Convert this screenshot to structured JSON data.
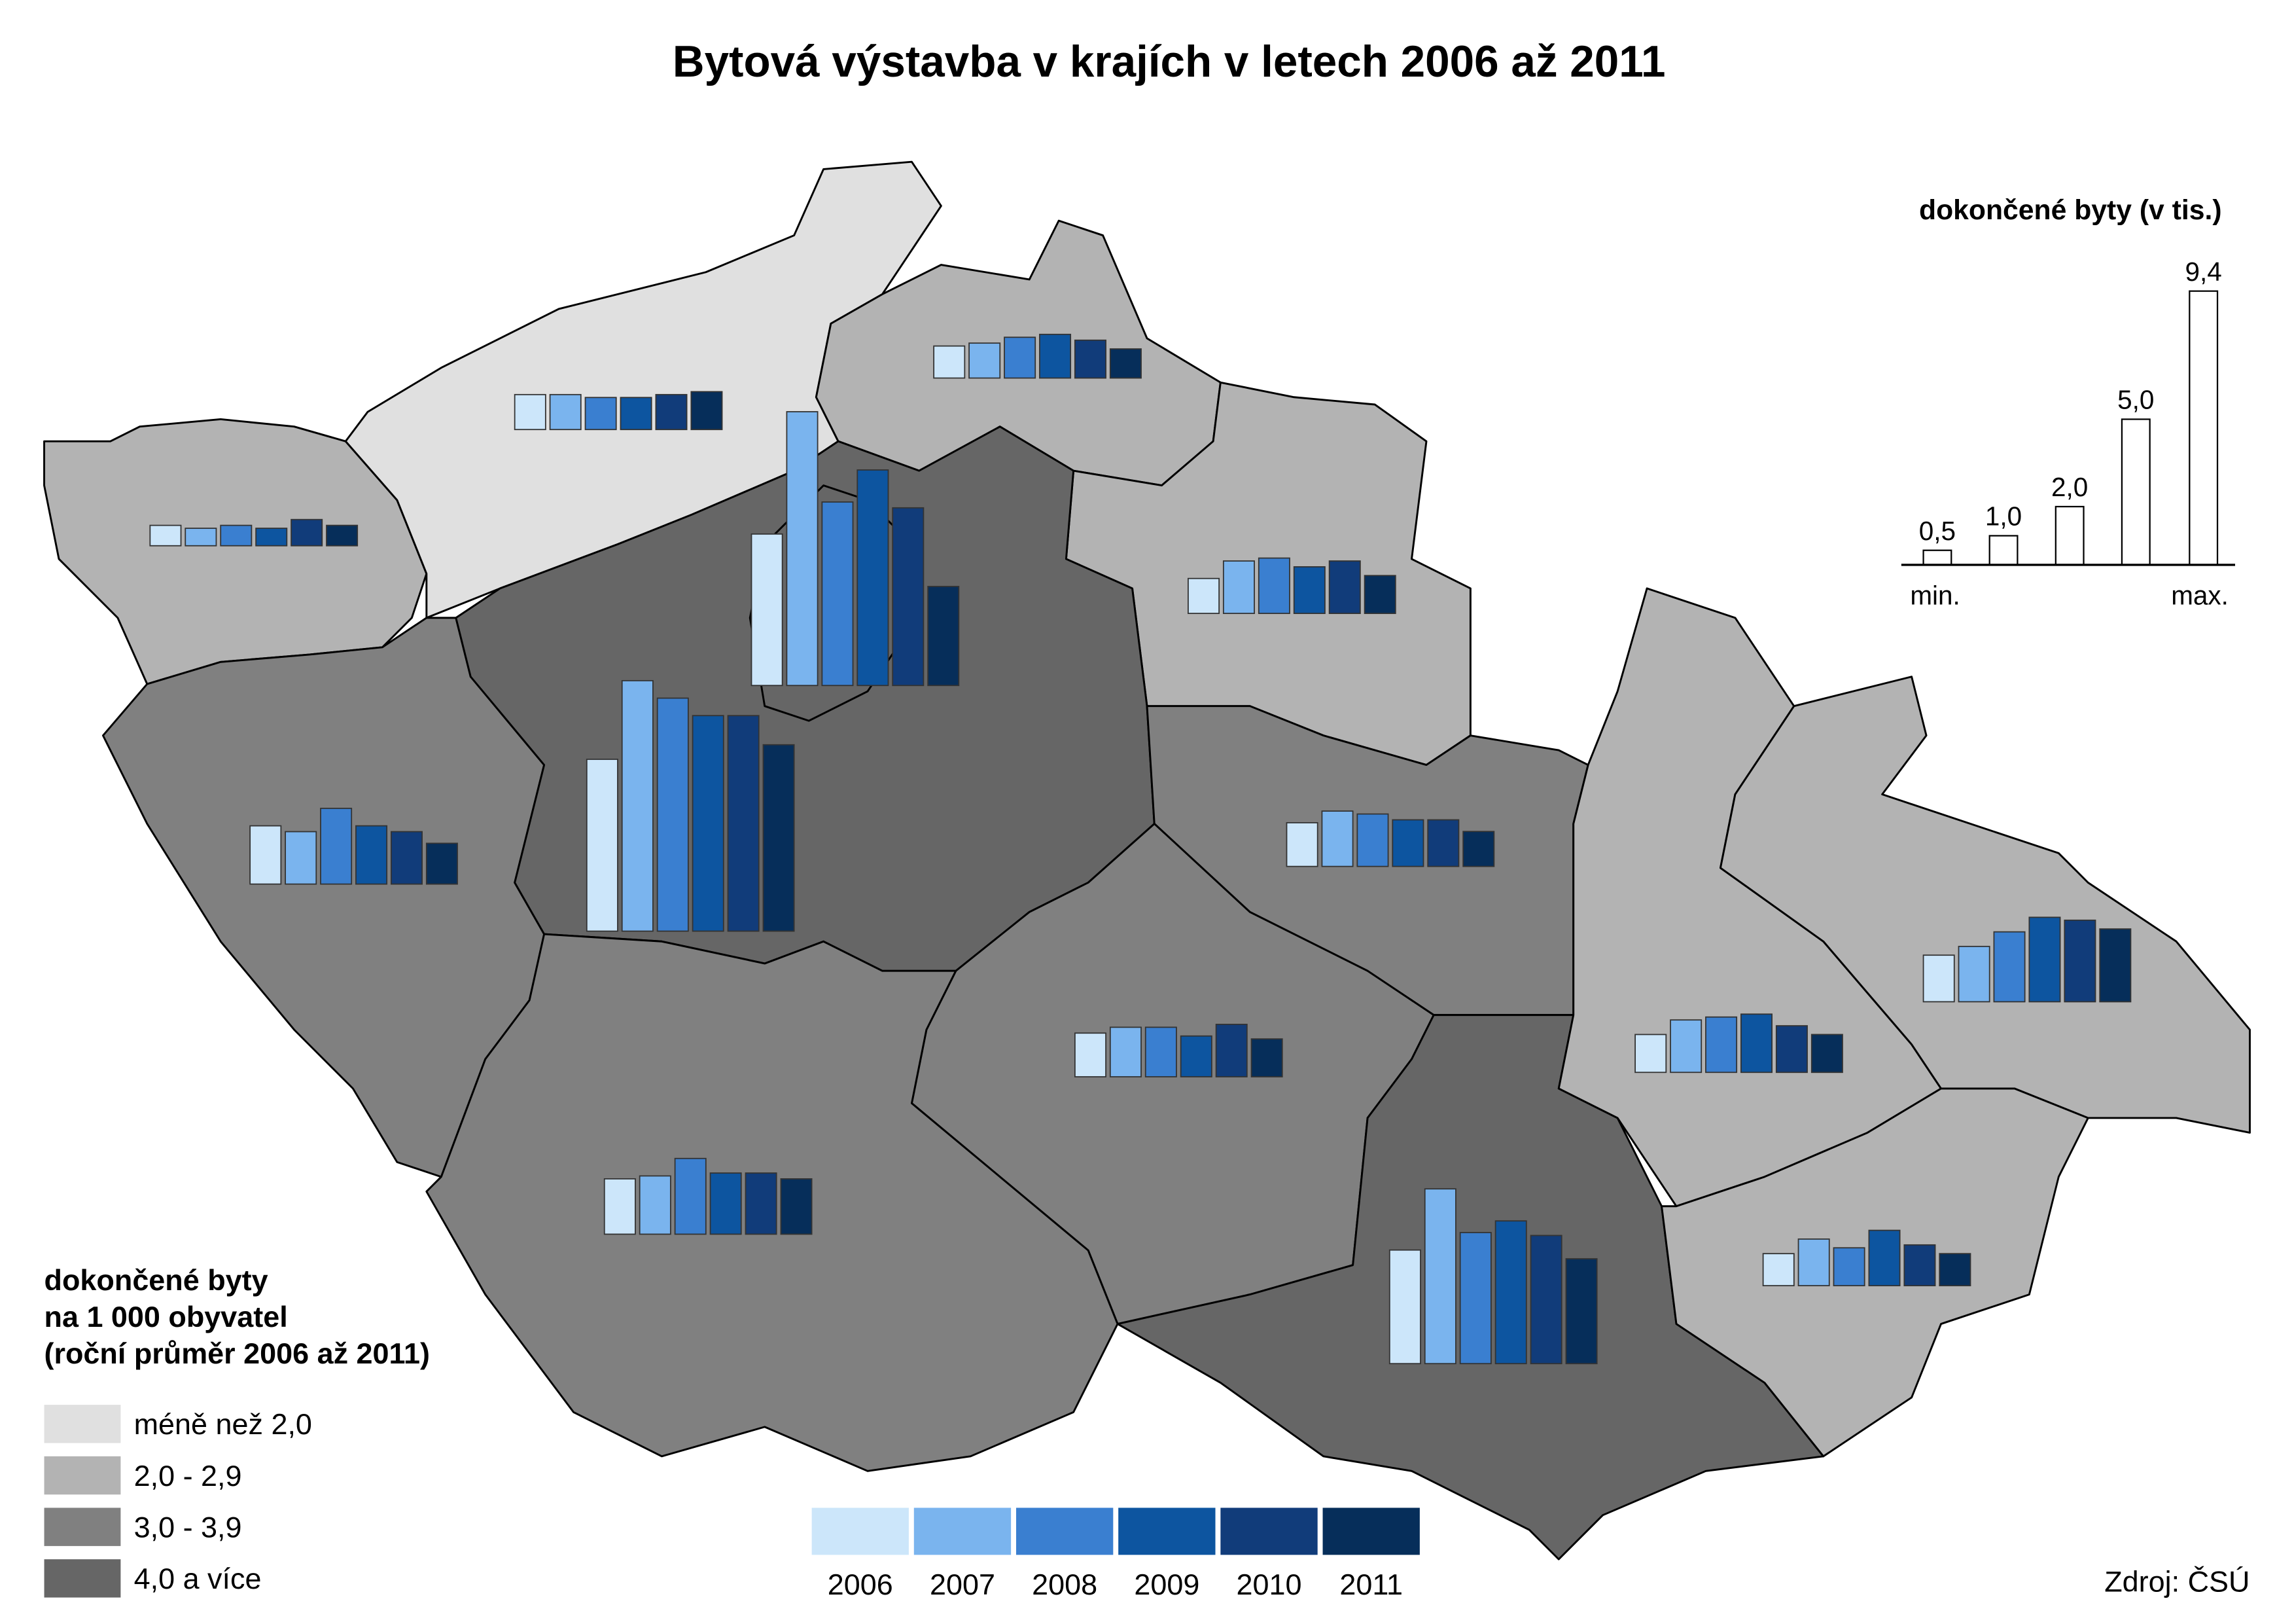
{
  "chart_data": {
    "type": "map-bar",
    "title": "Bytová výstavba v krajích v letech 2006 až 2011",
    "years": [
      "2006",
      "2007",
      "2008",
      "2009",
      "2010",
      "2011"
    ],
    "colors": [
      "#cce6fa",
      "#7ab4ee",
      "#3a7fd0",
      "#0d55a0",
      "#113c7a",
      "#062e5a"
    ],
    "regions": [
      {
        "color": "#b3b3b3",
        "values": [
          0.7,
          0.6,
          0.7,
          0.6,
          0.9,
          0.7
        ]
      },
      {
        "color": "#e0e0e0",
        "values": [
          1.2,
          1.2,
          1.1,
          1.1,
          1.2,
          1.3
        ]
      },
      {
        "color": "#b3b3b3",
        "values": [
          1.1,
          1.2,
          1.4,
          1.5,
          1.3,
          1.0
        ]
      },
      {
        "color": "#b3b3b3",
        "values": [
          1.2,
          1.8,
          1.9,
          1.6,
          1.8,
          1.3
        ]
      },
      {
        "color": "#808080",
        "values": [
          2.0,
          1.8,
          2.6,
          2.0,
          1.8,
          1.4
        ]
      },
      {
        "color": "#666666",
        "values": [
          5.9,
          8.6,
          8.0,
          7.4,
          7.4,
          6.4
        ]
      },
      {
        "color": "#666666",
        "values": [
          5.2,
          9.4,
          6.3,
          7.4,
          6.1,
          3.4
        ]
      },
      {
        "color": "#808080",
        "values": [
          1.5,
          1.9,
          1.8,
          1.6,
          1.6,
          1.2
        ]
      },
      {
        "color": "#808080",
        "values": [
          1.5,
          1.7,
          1.7,
          1.4,
          1.8,
          1.3
        ]
      },
      {
        "color": "#808080",
        "values": [
          1.9,
          2.0,
          2.6,
          2.1,
          2.1,
          1.9
        ]
      },
      {
        "color": "#666666",
        "values": [
          3.9,
          6.0,
          4.5,
          4.9,
          4.4,
          3.6
        ]
      },
      {
        "color": "#b3b3b3",
        "values": [
          1.3,
          1.8,
          1.9,
          2.0,
          1.6,
          1.3
        ]
      },
      {
        "color": "#b3b3b3",
        "values": [
          1.6,
          1.9,
          2.4,
          2.9,
          2.8,
          2.5
        ]
      },
      {
        "color": "#b3b3b3",
        "values": [
          1.1,
          1.6,
          1.3,
          1.9,
          1.4,
          1.1
        ]
      }
    ],
    "class_legend": {
      "title": [
        "dokončené byty",
        "na 1 000 obyvatel",
        "(roční průměr 2006 až 2011)"
      ],
      "items": [
        {
          "label": "méně než 2,0",
          "color": "#e0e0e0"
        },
        {
          "label": "2,0 - 2,9",
          "color": "#b3b3b3"
        },
        {
          "label": "3,0 - 3,9",
          "color": "#808080"
        },
        {
          "label": "4,0 a více",
          "color": "#666666"
        }
      ]
    },
    "size_legend": {
      "title": "dokončené byty (v tis.)",
      "values": [
        0.5,
        1.0,
        2.0,
        5.0,
        9.4
      ],
      "value_labels": [
        "0,5",
        "1,0",
        "2,0",
        "5,0",
        "9,4"
      ],
      "min_label": "min.",
      "max_label": "max."
    },
    "source": "Zdroj: ČSÚ"
  }
}
